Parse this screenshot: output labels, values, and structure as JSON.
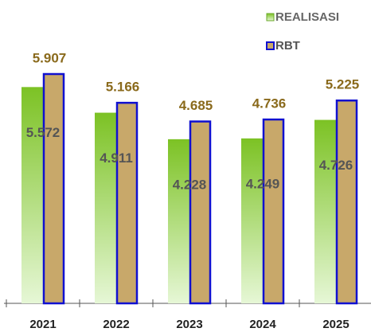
{
  "chart_data": {
    "type": "bar",
    "categories": [
      "2021",
      "2022",
      "2023",
      "2024",
      "2025"
    ],
    "series": [
      {
        "name": "REALISASI",
        "color": "#8cc63f",
        "values": [
          5.572,
          4.911,
          4.228,
          4.249,
          4.726
        ]
      },
      {
        "name": "RBT",
        "color": "#c8a86a",
        "values": [
          5.907,
          5.166,
          4.685,
          4.736,
          5.225
        ]
      }
    ]
  }
}
